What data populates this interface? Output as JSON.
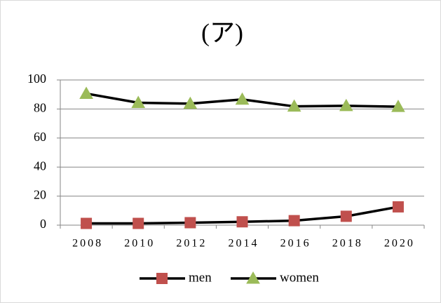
{
  "chart_data": {
    "type": "line",
    "title": "(ア)",
    "categories": [
      "2008",
      "2010",
      "2012",
      "2014",
      "2016",
      "2018",
      "2020"
    ],
    "series": [
      {
        "name": "men",
        "color": "#c0504d",
        "line_color": "#000000",
        "marker": "square",
        "values": [
          1.2,
          1.2,
          1.7,
          2.3,
          3.1,
          6.1,
          12.6
        ]
      },
      {
        "name": "women",
        "color": "#9bbb59",
        "line_color": "#000000",
        "marker": "triangle",
        "values": [
          90.6,
          84.3,
          83.7,
          86.6,
          81.8,
          82.2,
          81.6
        ]
      }
    ],
    "ylim": [
      0,
      100
    ],
    "yticks": [
      0,
      20,
      40,
      60,
      80,
      100
    ],
    "grid": true,
    "legend": "bottom"
  }
}
